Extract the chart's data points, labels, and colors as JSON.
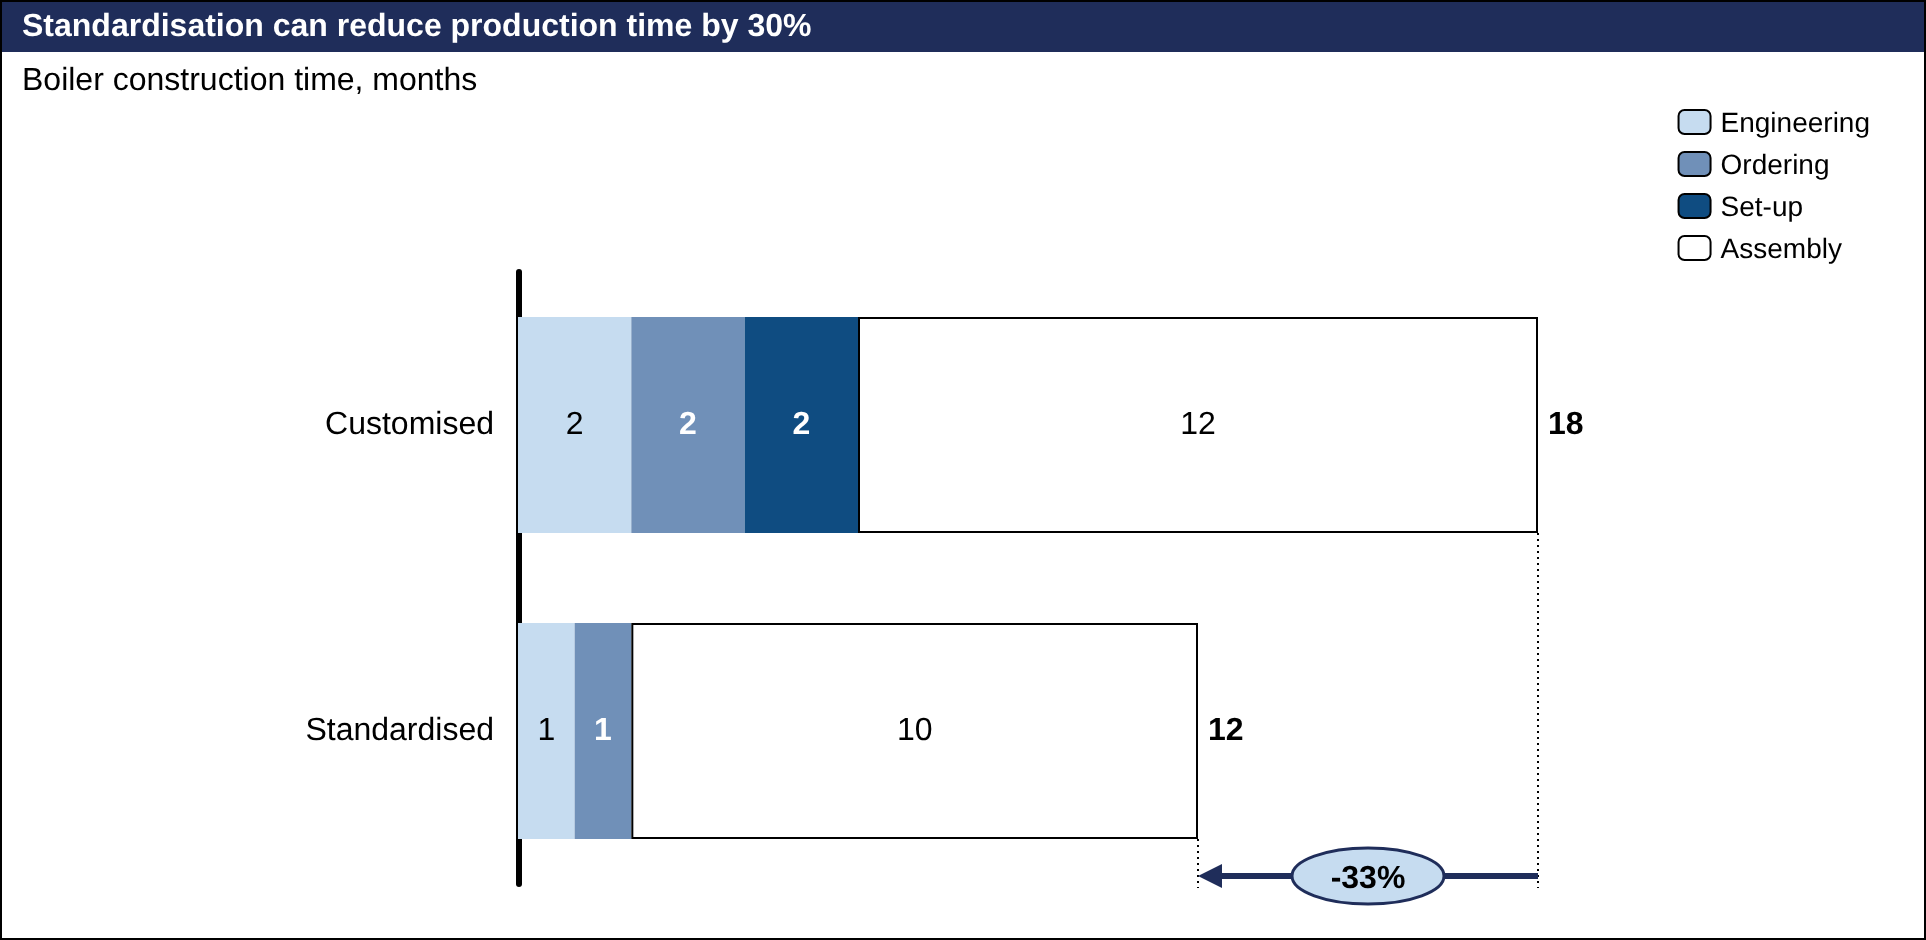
{
  "chart_data": {
    "type": "bar",
    "orientation": "horizontal",
    "stacked": true,
    "title": "Standardisation can reduce production time by 30%",
    "subtitle": "Boiler construction time, months",
    "categories": [
      "Customised",
      "Standardised"
    ],
    "series": [
      {
        "name": "Engineering",
        "color": "#c6dcf0",
        "values": [
          2,
          1
        ]
      },
      {
        "name": "Ordering",
        "color": "#7090b8",
        "values": [
          2,
          1
        ]
      },
      {
        "name": "Set-up",
        "color": "#0f4c81",
        "values": [
          2,
          null
        ]
      },
      {
        "name": "Assembly",
        "color": "#ffffff",
        "values": [
          12,
          10
        ]
      }
    ],
    "data_labels": true,
    "totals": [
      "18",
      "12"
    ],
    "annotations": [
      "-33%"
    ],
    "legend": "top right",
    "tick_labels": "y",
    "grid": false
  }
}
